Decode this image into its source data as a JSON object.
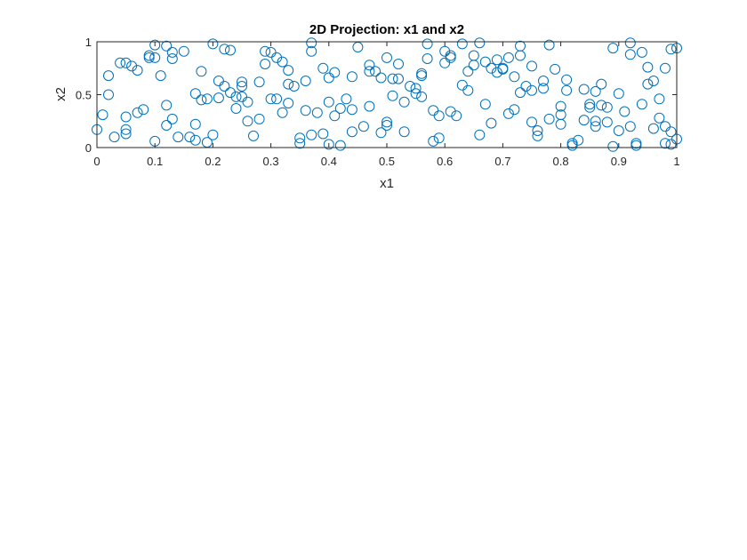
{
  "chart_data": {
    "type": "scatter",
    "title": "2D Projection: x1 and x2",
    "xlabel": "x1",
    "ylabel": "x2",
    "xlim": [
      0,
      1
    ],
    "ylim": [
      0,
      1
    ],
    "xticks": [
      "0",
      "0.1",
      "0.2",
      "0.3",
      "0.4",
      "0.5",
      "0.6",
      "0.7",
      "0.8",
      "0.9",
      "1"
    ],
    "yticks": [
      "0",
      "0.5",
      "1"
    ],
    "grid": false,
    "legend": "none",
    "marker": "open-circle",
    "color": "#0072BD",
    "points": [
      [
        0.0,
        0.17
      ],
      [
        0.01,
        0.31
      ],
      [
        0.02,
        0.5
      ],
      [
        0.02,
        0.68
      ],
      [
        0.03,
        0.1
      ],
      [
        0.04,
        0.8
      ],
      [
        0.05,
        0.8
      ],
      [
        0.05,
        0.29
      ],
      [
        0.05,
        0.13
      ],
      [
        0.05,
        0.17
      ],
      [
        0.06,
        0.77
      ],
      [
        0.07,
        0.73
      ],
      [
        0.07,
        0.33
      ],
      [
        0.08,
        0.36
      ],
      [
        0.09,
        0.87
      ],
      [
        0.09,
        0.85
      ],
      [
        0.1,
        0.85
      ],
      [
        0.1,
        0.97
      ],
      [
        0.1,
        0.06
      ],
      [
        0.11,
        0.68
      ],
      [
        0.12,
        0.4
      ],
      [
        0.12,
        0.21
      ],
      [
        0.12,
        0.96
      ],
      [
        0.13,
        0.27
      ],
      [
        0.13,
        0.9
      ],
      [
        0.13,
        0.84
      ],
      [
        0.14,
        0.1
      ],
      [
        0.15,
        0.91
      ],
      [
        0.16,
        0.1
      ],
      [
        0.17,
        0.51
      ],
      [
        0.17,
        0.07
      ],
      [
        0.17,
        0.22
      ],
      [
        0.18,
        0.45
      ],
      [
        0.18,
        0.72
      ],
      [
        0.19,
        0.46
      ],
      [
        0.19,
        0.05
      ],
      [
        0.2,
        0.98
      ],
      [
        0.2,
        0.12
      ],
      [
        0.21,
        0.63
      ],
      [
        0.21,
        0.47
      ],
      [
        0.22,
        0.58
      ],
      [
        0.22,
        0.93
      ],
      [
        0.23,
        0.92
      ],
      [
        0.23,
        0.52
      ],
      [
        0.24,
        0.37
      ],
      [
        0.24,
        0.48
      ],
      [
        0.25,
        0.48
      ],
      [
        0.25,
        0.58
      ],
      [
        0.25,
        0.62
      ],
      [
        0.26,
        0.25
      ],
      [
        0.26,
        0.43
      ],
      [
        0.27,
        0.11
      ],
      [
        0.28,
        0.62
      ],
      [
        0.28,
        0.27
      ],
      [
        0.29,
        0.91
      ],
      [
        0.29,
        0.79
      ],
      [
        0.3,
        0.9
      ],
      [
        0.3,
        0.46
      ],
      [
        0.31,
        0.85
      ],
      [
        0.31,
        0.46
      ],
      [
        0.32,
        0.33
      ],
      [
        0.32,
        0.81
      ],
      [
        0.33,
        0.73
      ],
      [
        0.33,
        0.42
      ],
      [
        0.33,
        0.6
      ],
      [
        0.34,
        0.58
      ],
      [
        0.35,
        0.09
      ],
      [
        0.35,
        0.04
      ],
      [
        0.36,
        0.35
      ],
      [
        0.36,
        0.63
      ],
      [
        0.37,
        0.12
      ],
      [
        0.37,
        0.91
      ],
      [
        0.37,
        0.99
      ],
      [
        0.38,
        0.33
      ],
      [
        0.39,
        0.75
      ],
      [
        0.39,
        0.13
      ],
      [
        0.4,
        0.66
      ],
      [
        0.4,
        0.43
      ],
      [
        0.4,
        0.03
      ],
      [
        0.41,
        0.71
      ],
      [
        0.41,
        0.3
      ],
      [
        0.42,
        0.37
      ],
      [
        0.42,
        0.02
      ],
      [
        0.43,
        0.46
      ],
      [
        0.44,
        0.36
      ],
      [
        0.44,
        0.15
      ],
      [
        0.44,
        0.67
      ],
      [
        0.45,
        0.95
      ],
      [
        0.46,
        0.2
      ],
      [
        0.47,
        0.39
      ],
      [
        0.47,
        0.78
      ],
      [
        0.47,
        0.72
      ],
      [
        0.48,
        0.72
      ],
      [
        0.49,
        0.14
      ],
      [
        0.49,
        0.66
      ],
      [
        0.5,
        0.21
      ],
      [
        0.5,
        0.85
      ],
      [
        0.5,
        0.24
      ],
      [
        0.51,
        0.49
      ],
      [
        0.51,
        0.65
      ],
      [
        0.52,
        0.65
      ],
      [
        0.52,
        0.79
      ],
      [
        0.53,
        0.15
      ],
      [
        0.53,
        0.43
      ],
      [
        0.54,
        0.58
      ],
      [
        0.55,
        0.51
      ],
      [
        0.55,
        0.56
      ],
      [
        0.56,
        0.68
      ],
      [
        0.56,
        0.7
      ],
      [
        0.56,
        0.48
      ],
      [
        0.57,
        0.98
      ],
      [
        0.57,
        0.84
      ],
      [
        0.58,
        0.06
      ],
      [
        0.58,
        0.35
      ],
      [
        0.59,
        0.09
      ],
      [
        0.59,
        0.3
      ],
      [
        0.6,
        0.8
      ],
      [
        0.6,
        0.91
      ],
      [
        0.61,
        0.87
      ],
      [
        0.61,
        0.34
      ],
      [
        0.61,
        0.85
      ],
      [
        0.62,
        0.3
      ],
      [
        0.63,
        0.59
      ],
      [
        0.63,
        0.98
      ],
      [
        0.64,
        0.54
      ],
      [
        0.64,
        0.72
      ],
      [
        0.65,
        0.78
      ],
      [
        0.65,
        0.87
      ],
      [
        0.66,
        0.12
      ],
      [
        0.66,
        0.99
      ],
      [
        0.67,
        0.41
      ],
      [
        0.67,
        0.81
      ],
      [
        0.68,
        0.75
      ],
      [
        0.68,
        0.23
      ],
      [
        0.69,
        0.71
      ],
      [
        0.69,
        0.83
      ],
      [
        0.7,
        0.75
      ],
      [
        0.7,
        0.74
      ],
      [
        0.71,
        0.32
      ],
      [
        0.71,
        0.85
      ],
      [
        0.72,
        0.36
      ],
      [
        0.72,
        0.67
      ],
      [
        0.73,
        0.52
      ],
      [
        0.73,
        0.87
      ],
      [
        0.73,
        0.96
      ],
      [
        0.74,
        0.58
      ],
      [
        0.75,
        0.77
      ],
      [
        0.75,
        0.24
      ],
      [
        0.75,
        0.54
      ],
      [
        0.76,
        0.11
      ],
      [
        0.76,
        0.16
      ],
      [
        0.77,
        0.56
      ],
      [
        0.77,
        0.63
      ],
      [
        0.78,
        0.97
      ],
      [
        0.78,
        0.27
      ],
      [
        0.79,
        0.74
      ],
      [
        0.8,
        0.22
      ],
      [
        0.8,
        0.31
      ],
      [
        0.8,
        0.39
      ],
      [
        0.81,
        0.54
      ],
      [
        0.81,
        0.64
      ],
      [
        0.82,
        0.02
      ],
      [
        0.82,
        0.04
      ],
      [
        0.83,
        0.07
      ],
      [
        0.84,
        0.26
      ],
      [
        0.84,
        0.55
      ],
      [
        0.85,
        0.38
      ],
      [
        0.85,
        0.41
      ],
      [
        0.86,
        0.53
      ],
      [
        0.86,
        0.25
      ],
      [
        0.86,
        0.2
      ],
      [
        0.87,
        0.4
      ],
      [
        0.87,
        0.6
      ],
      [
        0.88,
        0.38
      ],
      [
        0.88,
        0.24
      ],
      [
        0.89,
        0.01
      ],
      [
        0.89,
        0.94
      ],
      [
        0.9,
        0.16
      ],
      [
        0.9,
        0.51
      ],
      [
        0.91,
        0.34
      ],
      [
        0.92,
        0.99
      ],
      [
        0.92,
        0.88
      ],
      [
        0.92,
        0.2
      ],
      [
        0.93,
        0.02
      ],
      [
        0.93,
        0.04
      ],
      [
        0.94,
        0.41
      ],
      [
        0.94,
        0.9
      ],
      [
        0.95,
        0.76
      ],
      [
        0.95,
        0.6
      ],
      [
        0.96,
        0.63
      ],
      [
        0.96,
        0.18
      ],
      [
        0.97,
        0.28
      ],
      [
        0.97,
        0.46
      ],
      [
        0.98,
        0.04
      ],
      [
        0.98,
        0.2
      ],
      [
        0.98,
        0.75
      ],
      [
        0.99,
        0.15
      ],
      [
        0.99,
        0.03
      ],
      [
        0.99,
        0.93
      ],
      [
        1.0,
        0.08
      ],
      [
        1.0,
        0.94
      ]
    ]
  }
}
